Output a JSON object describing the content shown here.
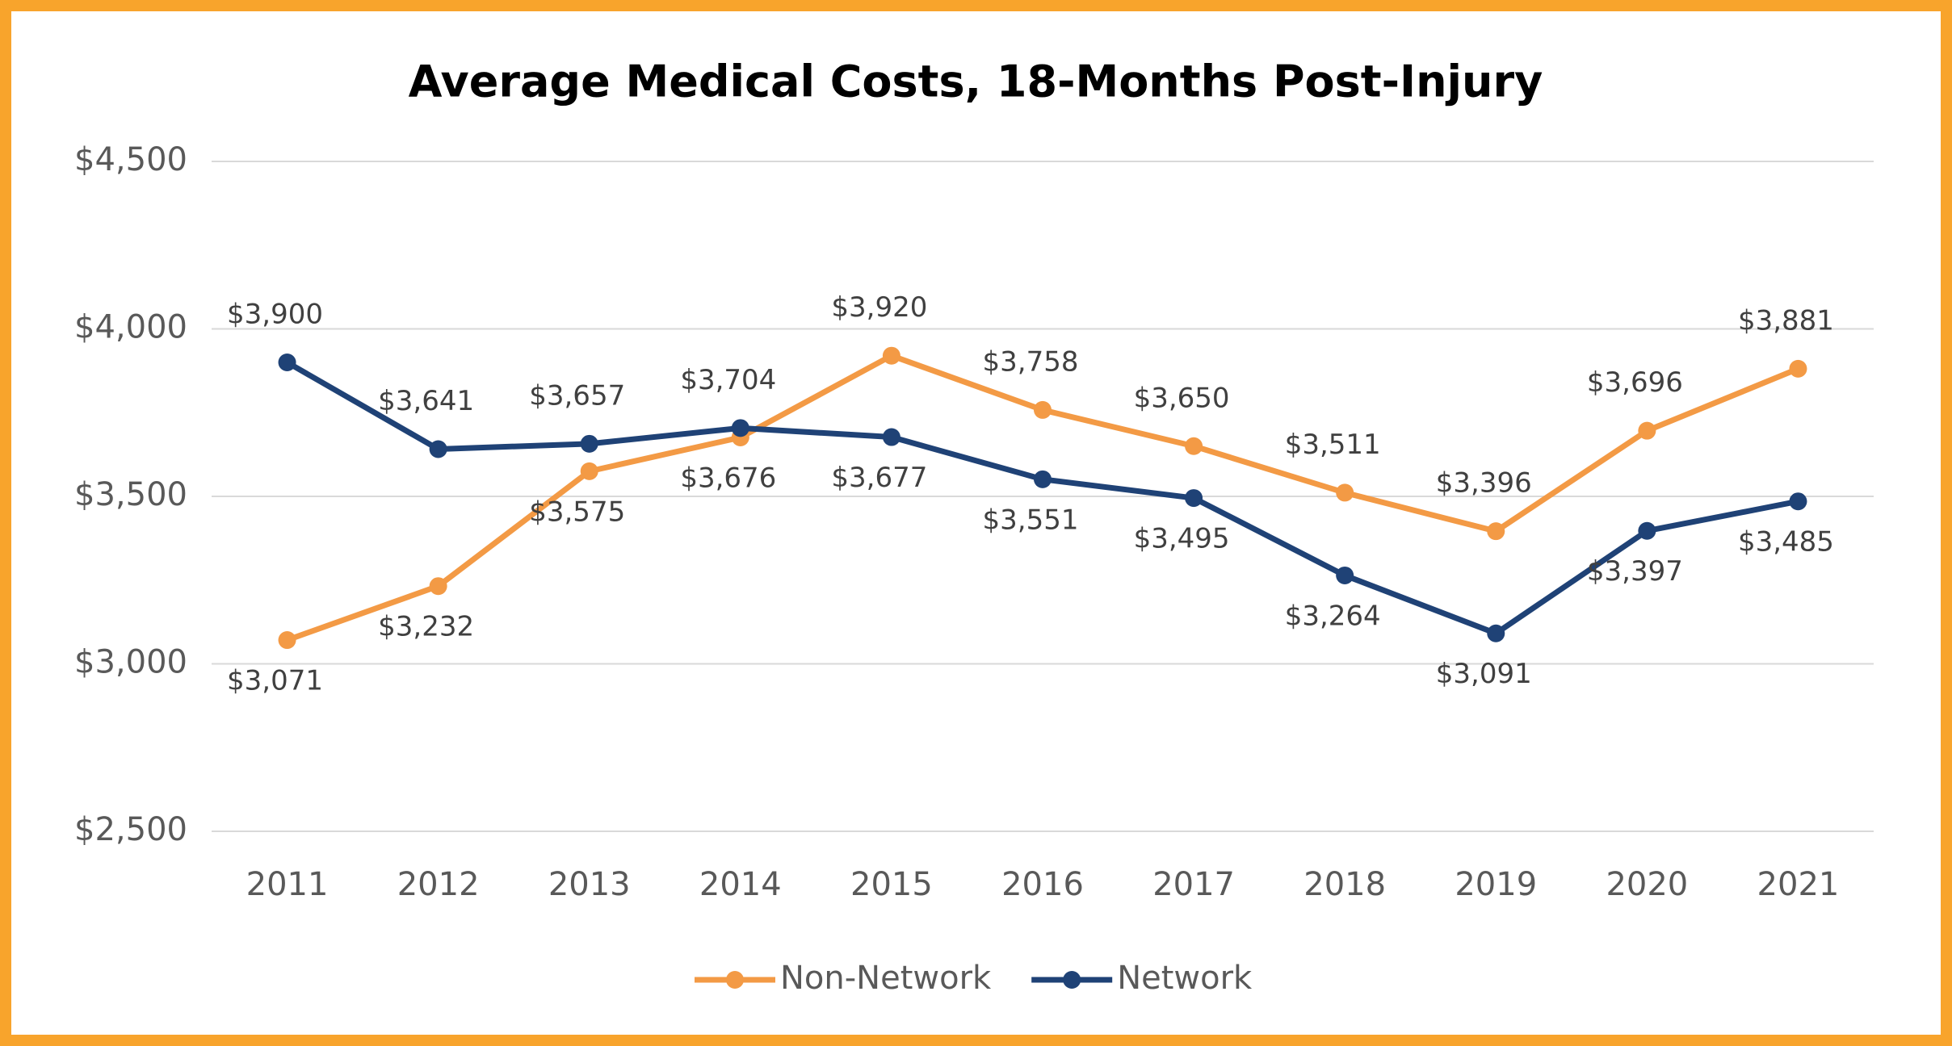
{
  "chart_data": {
    "type": "line",
    "title": "Average Medical Costs, 18-Months Post-Injury",
    "categories": [
      "2011",
      "2012",
      "2013",
      "2014",
      "2015",
      "2016",
      "2017",
      "2018",
      "2019",
      "2020",
      "2021"
    ],
    "series": [
      {
        "name": "Non-Network",
        "color": "#f39a45",
        "values": [
          3071,
          3232,
          3575,
          3676,
          3920,
          3758,
          3650,
          3511,
          3396,
          3696,
          3881
        ],
        "value_labels": [
          "$3,071",
          "$3,232",
          "$3,575",
          "$3,676",
          "$3,920",
          "$3,758",
          "$3,650",
          "$3,511",
          "$3,396",
          "$3,696",
          "$3,881"
        ]
      },
      {
        "name": "Network",
        "color": "#1f4276",
        "values": [
          3900,
          3641,
          3657,
          3704,
          3677,
          3551,
          3495,
          3264,
          3091,
          3397,
          3485
        ],
        "value_labels": [
          "$3,900",
          "$3,641",
          "$3,657",
          "$3,704",
          "$3,677",
          "$3,551",
          "$3,495",
          "$3,264",
          "$3,091",
          "$3,397",
          "$3,485"
        ]
      }
    ],
    "ylim": [
      2500,
      4500
    ],
    "yticks": [
      {
        "value": 2500,
        "label": "$2,500"
      },
      {
        "value": 3000,
        "label": "$3,000"
      },
      {
        "value": 3500,
        "label": "$3,500"
      },
      {
        "value": 4000,
        "label": "$4,000"
      },
      {
        "value": 4500,
        "label": "$4,500"
      }
    ],
    "grid": true,
    "legend": "bottom"
  }
}
